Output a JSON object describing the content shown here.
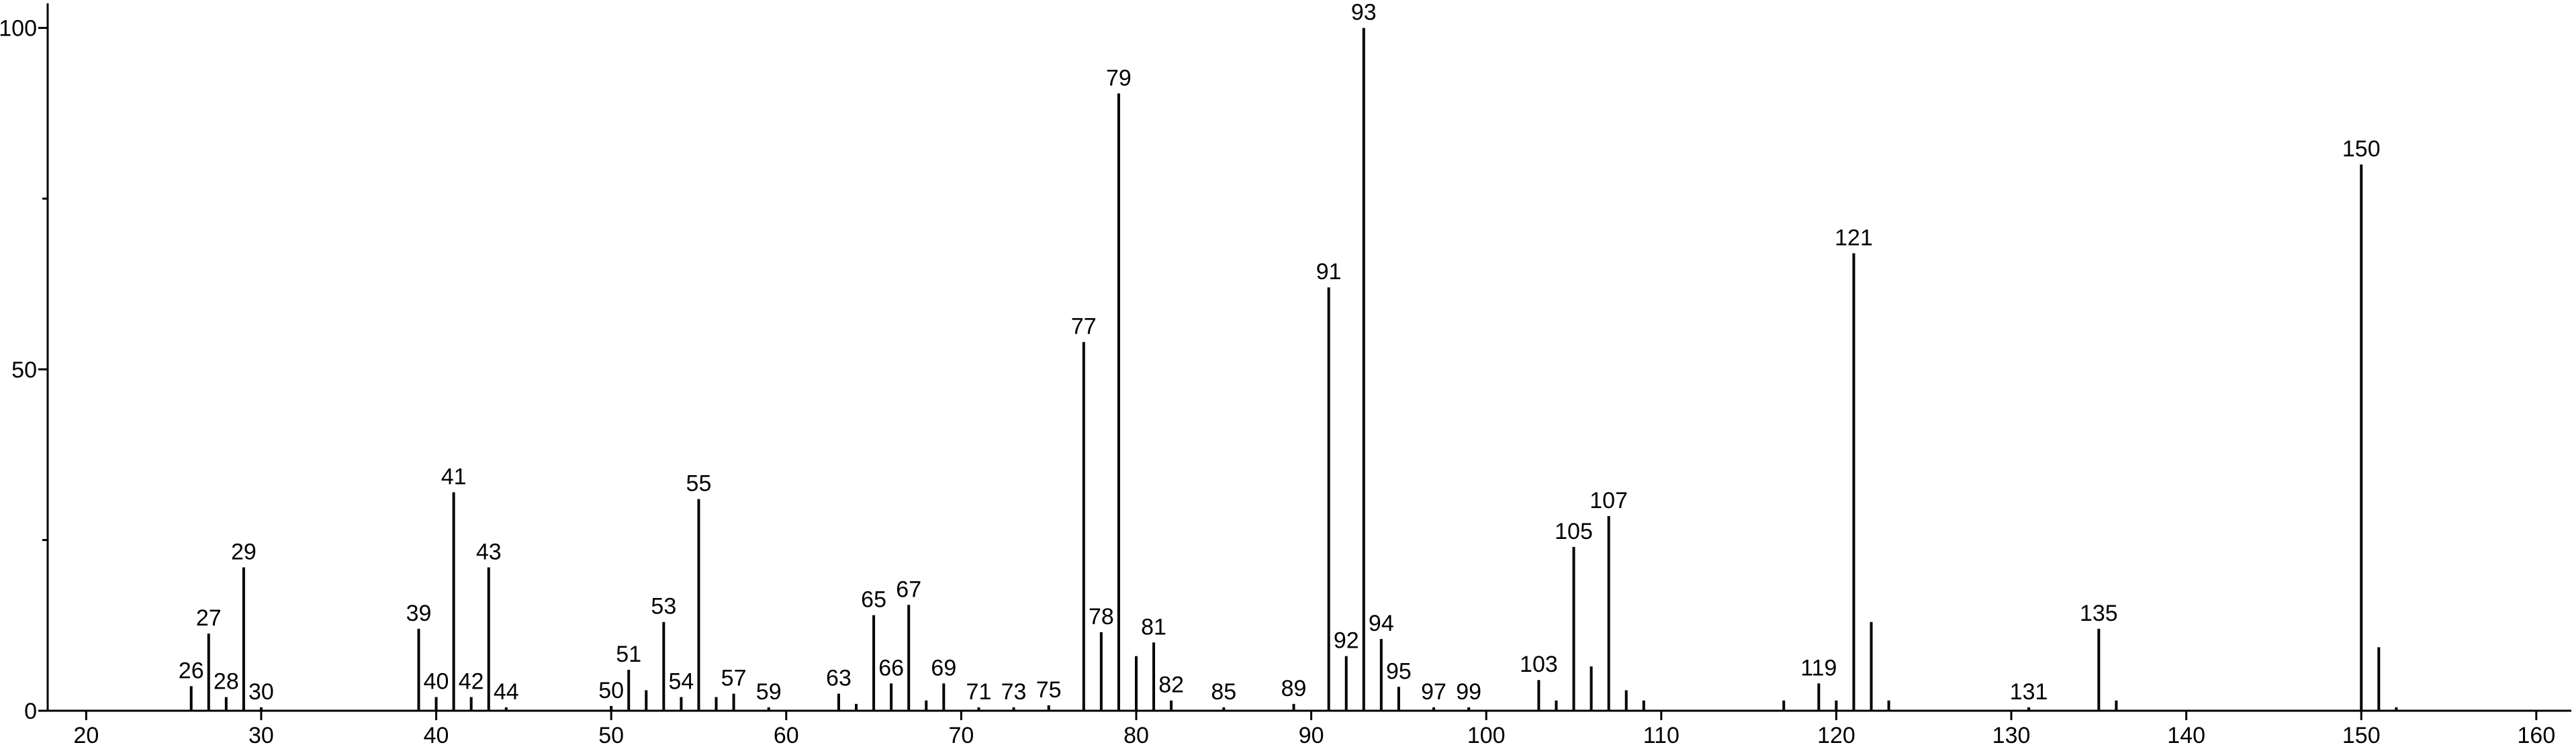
{
  "chart_data": {
    "type": "stem",
    "xlim": [
      17.8,
      162
    ],
    "ylim": [
      0,
      103.6
    ],
    "xticks": [
      20,
      30,
      40,
      50,
      60,
      70,
      80,
      90,
      100,
      110,
      120,
      130,
      140,
      150,
      160
    ],
    "yticks": [
      0,
      50,
      100
    ],
    "yminorticks": [
      25,
      75
    ],
    "color": "#000000",
    "series": [
      {
        "labeled": true,
        "x": [
          26,
          27,
          28,
          29,
          30,
          39,
          40,
          41,
          42,
          43,
          44,
          50,
          51,
          53,
          54,
          55,
          57,
          59,
          63,
          65,
          66,
          67,
          69,
          71,
          73,
          75,
          77,
          78,
          79,
          81,
          82,
          85,
          89,
          91,
          92,
          93,
          94,
          95,
          97,
          99,
          103,
          105,
          107,
          119,
          121,
          131,
          135,
          150
        ],
        "values": [
          3.6,
          11.3,
          2,
          21,
          0.5,
          12,
          2,
          32,
          2,
          21,
          0.5,
          0.7,
          6,
          13,
          2,
          31,
          2.5,
          0.5,
          2.5,
          14,
          4,
          15.5,
          4,
          0.5,
          0.5,
          0.8,
          54,
          11.5,
          90.4,
          10,
          1.5,
          0.5,
          1,
          62,
          8,
          100,
          10.5,
          3.5,
          0.5,
          0.5,
          4.5,
          24,
          28.5,
          4,
          67,
          0.5,
          12,
          80
        ]
      },
      {
        "labeled": false,
        "x": [
          52,
          56,
          64,
          68,
          80,
          104,
          106,
          108,
          109,
          117,
          120,
          122,
          123,
          136,
          151,
          152
        ],
        "values": [
          3,
          2,
          1,
          1.5,
          8,
          1.5,
          6.5,
          3,
          1.5,
          1.5,
          1.5,
          13,
          1.5,
          1.5,
          9.3,
          0.5
        ]
      }
    ]
  }
}
